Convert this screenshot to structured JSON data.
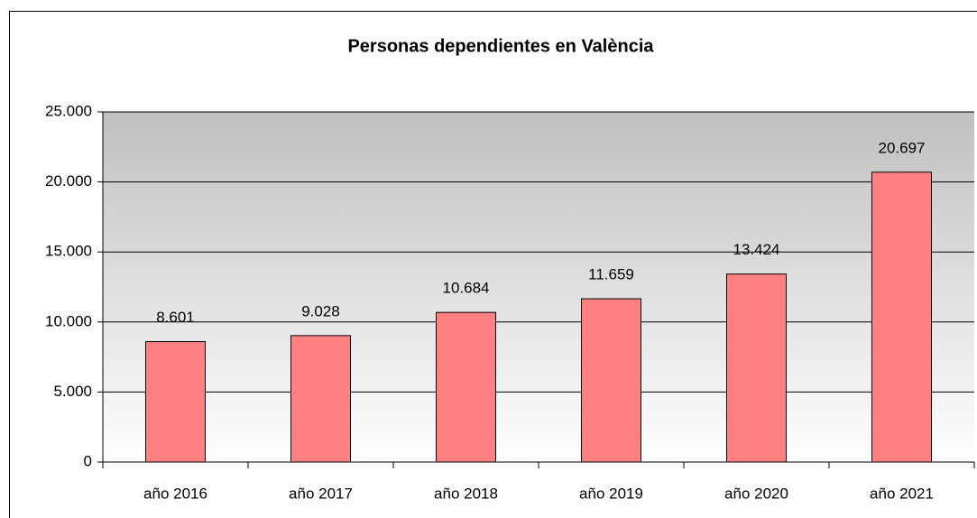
{
  "chart_data": {
    "type": "bar",
    "title": "Personas dependientes en València",
    "categories": [
      "año 2016",
      "año 2017",
      "año 2018",
      "año 2019",
      "año 2020",
      "año 2021"
    ],
    "values": [
      8601,
      9028,
      10684,
      11659,
      13424,
      20697
    ],
    "value_labels": [
      "8.601",
      "9.028",
      "10.684",
      "11.659",
      "13.424",
      "20.697"
    ],
    "color": "#ff8080",
    "ylim": [
      0,
      25000
    ],
    "yticks": [
      0,
      {
        "value": 5000,
        "label": "5.000"
      },
      {
        "value": 10000,
        "label": "10.000"
      },
      {
        "value": 15000,
        "label": "15.000"
      },
      {
        "value": 20000,
        "label": "20.000"
      },
      {
        "value": 25000,
        "label": "25.000"
      }
    ],
    "grid": true
  }
}
